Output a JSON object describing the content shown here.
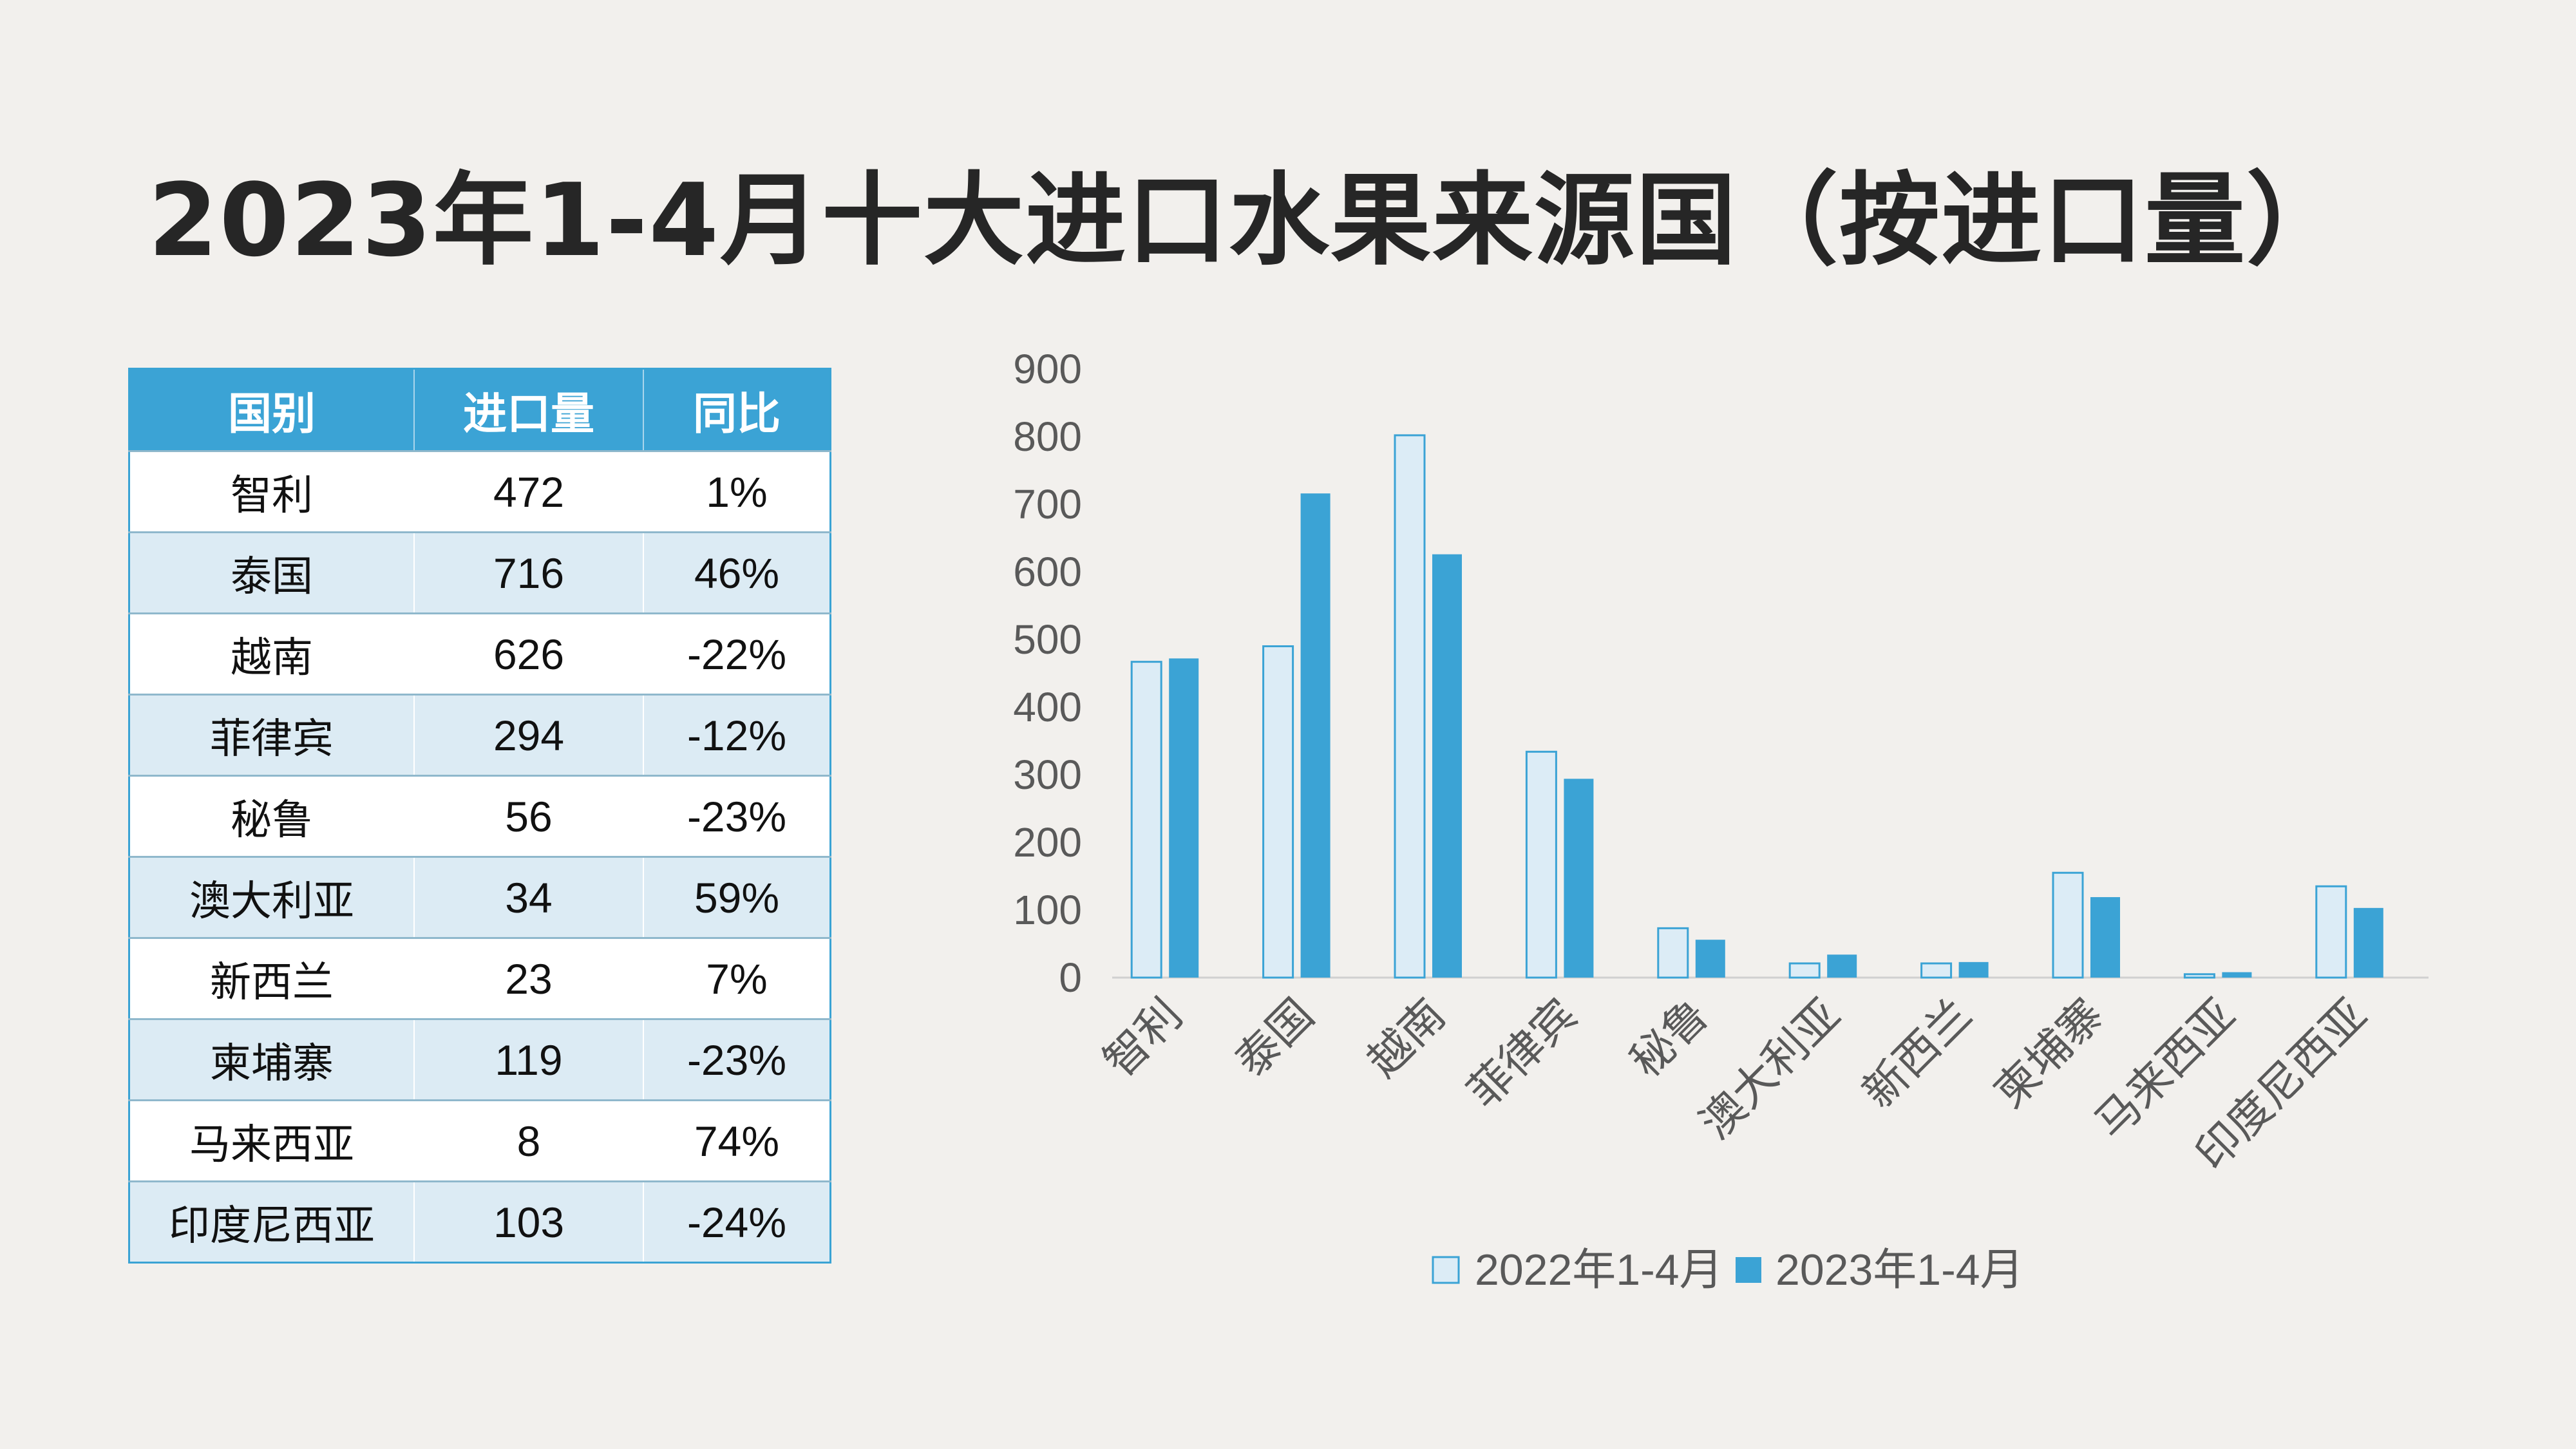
{
  "title": "2023年1-4月十大进口水果来源国（按进口量）",
  "table": {
    "headers": [
      "国别",
      "进口量",
      "同比"
    ],
    "rows": [
      [
        "智利",
        "472",
        "1%"
      ],
      [
        "泰国",
        "716",
        "46%"
      ],
      [
        "越南",
        "626",
        "-22%"
      ],
      [
        "菲律宾",
        "294",
        "-12%"
      ],
      [
        "秘鲁",
        "56",
        "-23%"
      ],
      [
        "澳大利亚",
        "34",
        "59%"
      ],
      [
        "新西兰",
        "23",
        "7%"
      ],
      [
        "柬埔寨",
        "119",
        "-23%"
      ],
      [
        "马来西亚",
        "8",
        "74%"
      ],
      [
        "印度尼西亚",
        "103",
        "-24%"
      ]
    ]
  },
  "chart_data": {
    "type": "bar",
    "categories": [
      "智利",
      "泰国",
      "越南",
      "菲律宾",
      "秘鲁",
      "澳大利亚",
      "新西兰",
      "柬埔寨",
      "马来西亚",
      "印度尼西亚"
    ],
    "series": [
      {
        "name": "2022年1-4月",
        "values": [
          467,
          490,
          802,
          334,
          73,
          21,
          21,
          155,
          5,
          135
        ],
        "color": "#dcecf6",
        "stroke": "#3ba3d5"
      },
      {
        "name": "2023年1-4月",
        "values": [
          472,
          716,
          626,
          294,
          56,
          34,
          23,
          119,
          8,
          103
        ],
        "color": "#3ba3d5"
      }
    ],
    "yticks": [
      "0",
      "100",
      "200",
      "300",
      "400",
      "500",
      "600",
      "700",
      "800",
      "900"
    ],
    "ylim": [
      0,
      900
    ],
    "grid": false,
    "legend": "bottom"
  }
}
